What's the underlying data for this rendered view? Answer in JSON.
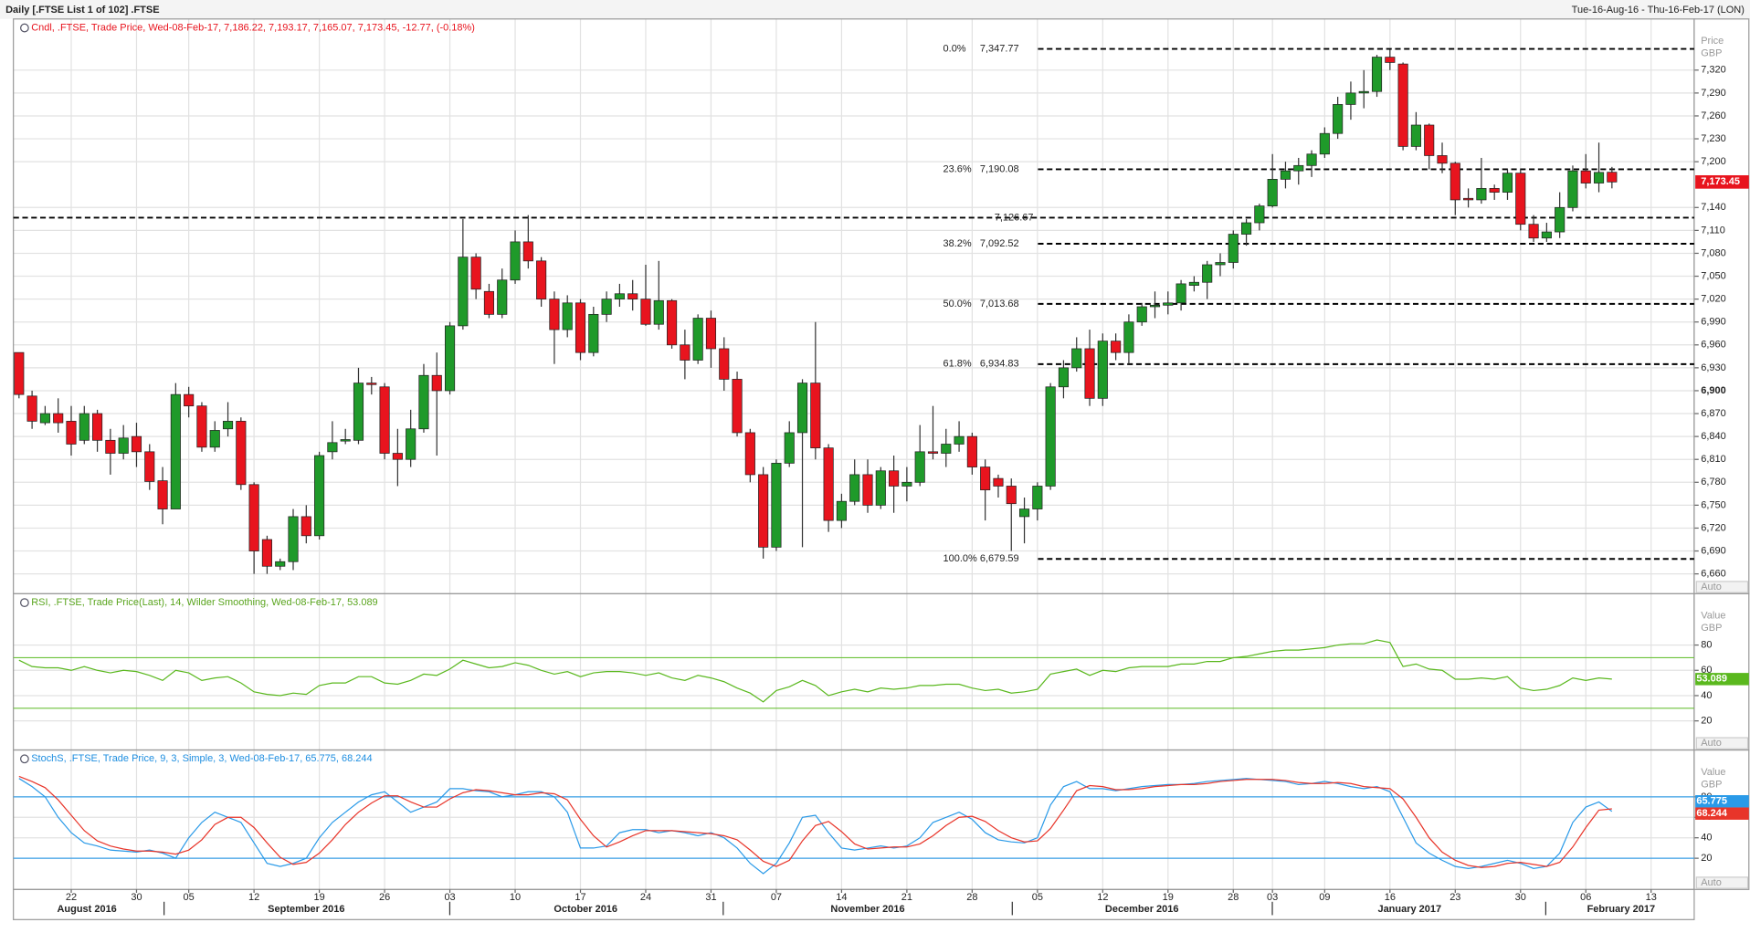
{
  "header": {
    "title": "Daily [.FTSE List 1 of 102] .FTSE",
    "range": "Tue-16-Aug-16 - Thu-16-Feb-17 (LON)"
  },
  "x_axis": {
    "xlim": [
      -0.43,
      128.3
    ],
    "xticks": [
      {
        "value": 4,
        "label": "22"
      },
      {
        "value": 9,
        "label": "30"
      },
      {
        "value": 13,
        "label": "05"
      },
      {
        "value": 18,
        "label": "12"
      },
      {
        "value": 23,
        "label": "19"
      },
      {
        "value": 28,
        "label": "26"
      },
      {
        "value": 33,
        "label": "03"
      },
      {
        "value": 38,
        "label": "10"
      },
      {
        "value": 43,
        "label": "17"
      },
      {
        "value": 48,
        "label": "24"
      },
      {
        "value": 53,
        "label": "31"
      },
      {
        "value": 58,
        "label": "07"
      },
      {
        "value": 63,
        "label": "14"
      },
      {
        "value": 68,
        "label": "21"
      },
      {
        "value": 73,
        "label": "28"
      },
      {
        "value": 78,
        "label": "05"
      },
      {
        "value": 83,
        "label": "12"
      },
      {
        "value": 88,
        "label": "19"
      },
      {
        "value": 93,
        "label": "28"
      },
      {
        "value": 96,
        "label": "03"
      },
      {
        "value": 100,
        "label": "09"
      },
      {
        "value": 105,
        "label": "16"
      },
      {
        "value": 110,
        "label": "23"
      },
      {
        "value": 115,
        "label": "30"
      },
      {
        "value": 120,
        "label": "06"
      },
      {
        "value": 125,
        "label": "13"
      }
    ],
    "month_labels": [
      {
        "value": 5.2,
        "label": "August 2016"
      },
      {
        "value": 22,
        "label": "September 2016"
      },
      {
        "value": 43.4,
        "label": "October 2016"
      },
      {
        "value": 65,
        "label": "November 2016"
      },
      {
        "value": 86,
        "label": "December 2016"
      },
      {
        "value": 106.5,
        "label": "January 2017"
      },
      {
        "value": 122.7,
        "label": "February 2017"
      }
    ]
  },
  "chart_data": [
    {
      "type": "candlestick",
      "legend": "Cndl, .FTSE, Trade Price, Wed-08-Feb-17, 7,186.22, 7,193.17, 7,165.07, 7,173.45, -12.77, (-0.18%)",
      "axis_title": "Price",
      "axis_unit": "GBP",
      "axis_mode": "Auto",
      "up_color": "#1f9a2a",
      "down_color": "#e8141e",
      "ylim": [
        6634,
        7387
      ],
      "yticks": [
        {
          "value": 6660,
          "label": "6,660"
        },
        {
          "value": 6690,
          "label": "6,690"
        },
        {
          "value": 6720,
          "label": "6,720"
        },
        {
          "value": 6750,
          "label": "6,750"
        },
        {
          "value": 6780,
          "label": "6,780"
        },
        {
          "value": 6810,
          "label": "6,810"
        },
        {
          "value": 6840,
          "label": "6,840"
        },
        {
          "value": 6870,
          "label": "6,870"
        },
        {
          "value": 6900,
          "label": "6,900"
        },
        {
          "value": 6930,
          "label": "6,930"
        },
        {
          "value": 6960,
          "label": "6,960"
        },
        {
          "value": 6990,
          "label": "6,990"
        },
        {
          "value": 7020,
          "label": "7,020"
        },
        {
          "value": 7050,
          "label": "7,050"
        },
        {
          "value": 7080,
          "label": "7,080"
        },
        {
          "value": 7110,
          "label": "7,110"
        },
        {
          "value": 7140,
          "label": "7,140"
        },
        {
          "value": 7200,
          "label": "7,200"
        },
        {
          "value": 7230,
          "label": "7,230"
        },
        {
          "value": 7260,
          "label": "7,260"
        },
        {
          "value": 7290,
          "label": "7,290"
        },
        {
          "value": 7320,
          "label": "7,320"
        }
      ],
      "bold_tick": 6900,
      "last_label": "7,173.45",
      "levels": [
        {
          "label": "0.0%",
          "value": 7347.77,
          "value_label": "7,347.77"
        },
        {
          "label": "23.6%",
          "value": 7190.08,
          "value_label": "7,190.08"
        },
        {
          "label": "38.2%",
          "value": 7092.52,
          "value_label": "7,092.52"
        },
        {
          "label": "50.0%",
          "value": 7013.68,
          "value_label": "7,013.68"
        },
        {
          "label": "61.8%",
          "value": 6934.83,
          "value_label": "6,934.83"
        },
        {
          "label": "100.0%",
          "value": 6679.59,
          "value_label": "6,679.59"
        }
      ],
      "horizontal_lines": [
        {
          "value": 7126.67,
          "label": "7,126.67"
        }
      ],
      "open": [
        6950,
        6893,
        6858,
        6870,
        6860,
        6835,
        6870,
        6835,
        6818,
        6840,
        6820,
        6782,
        6745,
        6895,
        6880,
        6826,
        6850,
        6860,
        6777,
        6705,
        6670,
        6676,
        6735,
        6710,
        6820,
        6834,
        6835,
        6910,
        6905,
        6818,
        6810,
        6850,
        6920,
        6900,
        6985,
        7075,
        7030,
        7000,
        7045,
        7095,
        7070,
        7020,
        6980,
        7015,
        6950,
        7000,
        7020,
        7027,
        7020,
        6987,
        7018,
        6960,
        6940,
        6995,
        6955,
        6915,
        6845,
        6790,
        6695,
        6805,
        6845,
        6910,
        6825,
        6730,
        6755,
        6790,
        6750,
        6795,
        6775,
        6780,
        6820,
        6818,
        6830,
        6840,
        6800,
        6785,
        6775,
        6735,
        6745,
        6775,
        6905,
        6930,
        6955,
        6890,
        6965,
        6950,
        6990,
        7010,
        7012,
        7015,
        7038,
        7042,
        7065,
        7068,
        7105,
        7120,
        7142,
        7177,
        7188,
        7195,
        7210,
        7237,
        7275,
        7290,
        7292,
        7337,
        7328,
        7220,
        7248,
        7208,
        7198,
        7152,
        7150,
        7165,
        7160,
        7185,
        7118,
        7100,
        7108,
        7140,
        7188,
        7172,
        7186.22
      ],
      "high": [
        6950,
        6900,
        6880,
        6890,
        6880,
        6880,
        6875,
        6850,
        6855,
        6858,
        6830,
        6800,
        6910,
        6905,
        6885,
        6860,
        6885,
        6865,
        6780,
        6710,
        6680,
        6745,
        6750,
        6820,
        6860,
        6850,
        6930,
        6918,
        6910,
        6850,
        6875,
        6935,
        6950,
        6990,
        7125,
        7080,
        7040,
        7060,
        7110,
        7130,
        7075,
        7030,
        7025,
        7020,
        7010,
        7030,
        7040,
        7045,
        7065,
        7070,
        7020,
        6980,
        7000,
        7005,
        6970,
        6925,
        6850,
        6800,
        6810,
        6860,
        6915,
        6990,
        6830,
        6765,
        6810,
        6810,
        6800,
        6815,
        6800,
        6855,
        6880,
        6850,
        6860,
        6845,
        6810,
        6790,
        6785,
        6760,
        6780,
        6910,
        6940,
        6970,
        6980,
        6975,
        6975,
        7000,
        7015,
        7030,
        7030,
        7045,
        7050,
        7070,
        7080,
        7110,
        7125,
        7145,
        7210,
        7200,
        7205,
        7215,
        7245,
        7285,
        7305,
        7320,
        7340,
        7347,
        7330,
        7265,
        7250,
        7225,
        7200,
        7165,
        7205,
        7170,
        7190,
        7190,
        7130,
        7120,
        7160,
        7195,
        7210,
        7225,
        7193.17
      ],
      "low": [
        6890,
        6850,
        6855,
        6845,
        6815,
        6830,
        6820,
        6790,
        6810,
        6800,
        6770,
        6725,
        6745,
        6865,
        6820,
        6820,
        6840,
        6770,
        6660,
        6660,
        6665,
        6665,
        6700,
        6705,
        6810,
        6830,
        6830,
        6895,
        6810,
        6775,
        6800,
        6845,
        6815,
        6895,
        6980,
        7020,
        6995,
        6995,
        7040,
        7060,
        7010,
        6935,
        6970,
        6940,
        6945,
        6990,
        7010,
        7005,
        6985,
        6980,
        6955,
        6915,
        6935,
        6930,
        6900,
        6840,
        6780,
        6680,
        6690,
        6800,
        6695,
        6810,
        6715,
        6720,
        6750,
        6740,
        6745,
        6740,
        6755,
        6775,
        6810,
        6800,
        6820,
        6790,
        6730,
        6760,
        6690,
        6700,
        6730,
        6770,
        6890,
        6925,
        6880,
        6880,
        6940,
        6935,
        6985,
        6995,
        7000,
        7005,
        7030,
        7020,
        7050,
        7060,
        7090,
        7110,
        7140,
        7165,
        7170,
        7180,
        7205,
        7230,
        7255,
        7270,
        7285,
        7320,
        7215,
        7215,
        7190,
        7185,
        7130,
        7140,
        7145,
        7150,
        7150,
        7110,
        7095,
        7095,
        7100,
        7135,
        7165,
        7160,
        7165.07
      ],
      "close": [
        6895,
        6860,
        6870,
        6858,
        6830,
        6870,
        6835,
        6818,
        6838,
        6820,
        6781,
        6745,
        6895,
        6880,
        6826,
        6848,
        6860,
        6777,
        6690,
        6670,
        6676,
        6735,
        6710,
        6815,
        6832,
        6836,
        6910,
        6908,
        6818,
        6810,
        6850,
        6920,
        6900,
        6985,
        7075,
        7033,
        7000,
        7045,
        7095,
        7070,
        7020,
        6980,
        7015,
        6950,
        7000,
        7020,
        7027,
        7020,
        6987,
        7018,
        6960,
        6940,
        6995,
        6955,
        6915,
        6845,
        6790,
        6695,
        6805,
        6845,
        6910,
        6825,
        6730,
        6755,
        6790,
        6750,
        6795,
        6775,
        6780,
        6820,
        6818,
        6830,
        6840,
        6800,
        6770,
        6775,
        6752,
        6745,
        6775,
        6905,
        6930,
        6955,
        6890,
        6965,
        6950,
        6990,
        7010,
        7012,
        7015,
        7040,
        7042,
        7065,
        7068,
        7105,
        7120,
        7142,
        7177,
        7188,
        7195,
        7210,
        7237,
        7275,
        7290,
        7292,
        7337,
        7330,
        7220,
        7248,
        7208,
        7198,
        7150,
        7150,
        7165,
        7160,
        7185,
        7118,
        7100,
        7108,
        7140,
        7188,
        7172,
        7186,
        7173.45
      ]
    },
    {
      "type": "line",
      "legend": "RSI, .FTSE, Trade Price(Last), 14, Wilder Smoothing, Wed-08-Feb-17, 53.089",
      "legend_color": "#5aa51e",
      "axis_title": "Value",
      "axis_unit": "GBP",
      "axis_mode": "Auto",
      "ylim": [
        -3,
        120.6
      ],
      "yticks": [
        20,
        40,
        60,
        80
      ],
      "levels": [
        70,
        30
      ],
      "level_color": "#6cc23a",
      "series": [
        {
          "name": "RSI",
          "color": "#5ab81e",
          "values": [
            68,
            63,
            62,
            62,
            60,
            63,
            60,
            58,
            60,
            59,
            56,
            52,
            60,
            58,
            52,
            54,
            55,
            50,
            43,
            41,
            40,
            42,
            41,
            48,
            50,
            50,
            55,
            55,
            50,
            49,
            52,
            57,
            56,
            61,
            68,
            65,
            62,
            63,
            66,
            64,
            60,
            57,
            59,
            55,
            58,
            59,
            59,
            58,
            56,
            58,
            54,
            52,
            56,
            54,
            51,
            46,
            42,
            35,
            44,
            47,
            52,
            48,
            40,
            43,
            45,
            43,
            46,
            45,
            46,
            48,
            48,
            49,
            49,
            46,
            44,
            45,
            42,
            43,
            45,
            57,
            59,
            61,
            56,
            60,
            59,
            62,
            63,
            63,
            63,
            65,
            65,
            67,
            67,
            70,
            71,
            73,
            75,
            76,
            76,
            77,
            78,
            80,
            81,
            81,
            84,
            82,
            63,
            65,
            61,
            60,
            53,
            53,
            54,
            53,
            55,
            46,
            44,
            45,
            48,
            54,
            52,
            54,
            53.089
          ]
        }
      ]
    },
    {
      "type": "line",
      "legend": "StochS, .FTSE, Trade Price, 9, 3, Simple, 3, Wed-08-Feb-17, 65.775, 68.244",
      "legend_color": "#1e8ee0",
      "axis_title": "Value",
      "axis_unit": "GBP",
      "axis_mode": "Auto",
      "ylim": [
        -10.5,
        125.8
      ],
      "yticks": [
        20,
        40,
        60,
        80
      ],
      "levels": [
        80,
        20
      ],
      "level_color": "#3aa0e8",
      "series": [
        {
          "name": "%K",
          "color": "#2a9ae8",
          "values": [
            98,
            90,
            80,
            60,
            45,
            35,
            32,
            28,
            27,
            26,
            28,
            25,
            20,
            40,
            55,
            65,
            60,
            55,
            35,
            15,
            12,
            15,
            20,
            40,
            55,
            65,
            75,
            82,
            85,
            75,
            65,
            70,
            75,
            88,
            88,
            86,
            85,
            80,
            82,
            85,
            85,
            80,
            65,
            30,
            30,
            32,
            45,
            48,
            48,
            45,
            47,
            45,
            42,
            45,
            40,
            30,
            15,
            5,
            15,
            35,
            60,
            62,
            45,
            30,
            28,
            30,
            32,
            30,
            32,
            40,
            55,
            60,
            65,
            58,
            45,
            38,
            36,
            35,
            40,
            72,
            90,
            95,
            88,
            88,
            86,
            88,
            90,
            91,
            92,
            92,
            93,
            95,
            96,
            97,
            98,
            97,
            96,
            95,
            92,
            93,
            95,
            93,
            90,
            88,
            90,
            85,
            60,
            35,
            25,
            18,
            12,
            10,
            12,
            15,
            18,
            15,
            10,
            12,
            25,
            55,
            70,
            75,
            65.775
          ]
        },
        {
          "name": "%D",
          "color": "#e8352a",
          "values": [
            100,
            95,
            89,
            77,
            62,
            47,
            37,
            32,
            29,
            27,
            27,
            26,
            24,
            28,
            38,
            53,
            60,
            60,
            50,
            35,
            21,
            14,
            16,
            25,
            38,
            53,
            65,
            74,
            81,
            81,
            75,
            70,
            70,
            78,
            84,
            87,
            86,
            84,
            82,
            82,
            84,
            83,
            77,
            58,
            42,
            31,
            36,
            42,
            47,
            47,
            47,
            46,
            45,
            44,
            42,
            38,
            28,
            17,
            12,
            18,
            37,
            52,
            56,
            46,
            34,
            29,
            30,
            31,
            31,
            34,
            42,
            52,
            60,
            61,
            56,
            47,
            40,
            36,
            37,
            49,
            67,
            86,
            91,
            90,
            87,
            87,
            88,
            90,
            91,
            92,
            92,
            93,
            95,
            96,
            97,
            97,
            97,
            96,
            94,
            93,
            93,
            94,
            93,
            90,
            89,
            88,
            78,
            60,
            40,
            26,
            18,
            13,
            11,
            12,
            15,
            16,
            14,
            12,
            16,
            31,
            50,
            67,
            68.244
          ]
        }
      ]
    }
  ]
}
